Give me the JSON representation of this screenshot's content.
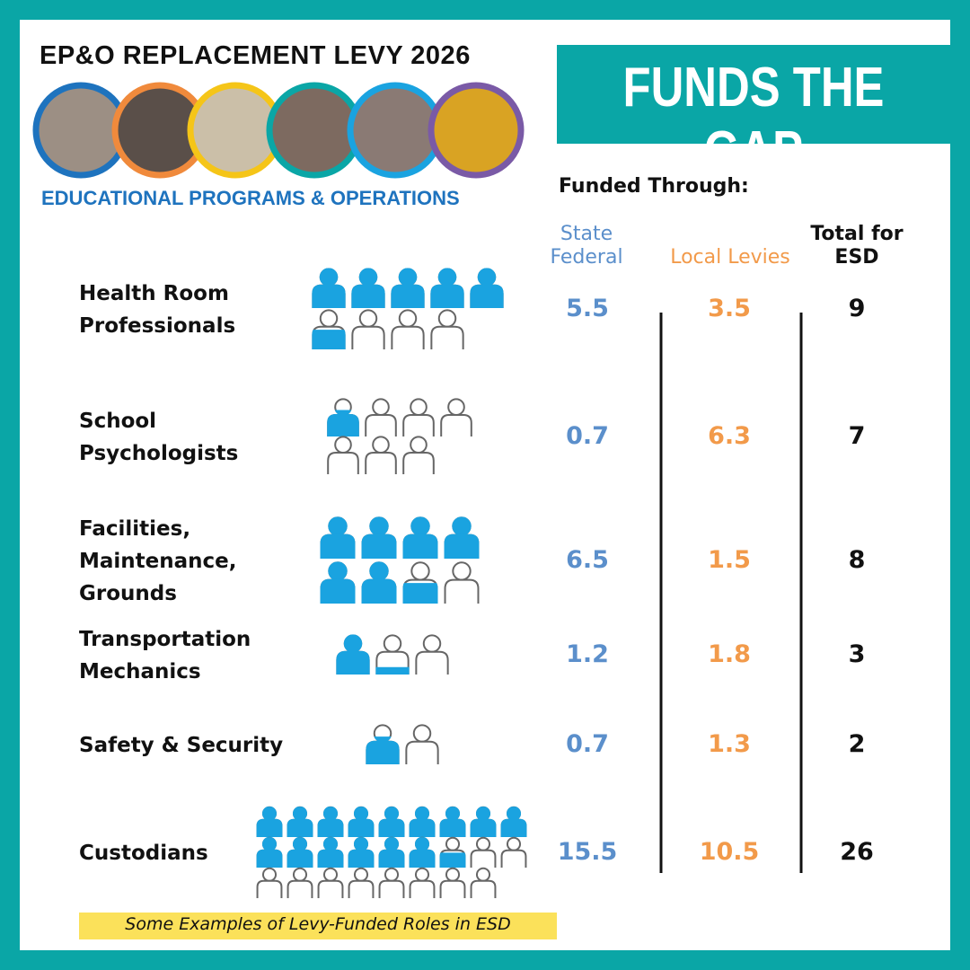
{
  "header": {
    "title": "EP&O REPLACEMENT LEVY 2026",
    "subtitle": "EDUCATIONAL PROGRAMS & OPERATIONS",
    "banner": "FUNDS THE GAP"
  },
  "table": {
    "caption": "Funded Through:",
    "columns": [
      "State Federal",
      "Local Levies",
      "Total for ESD"
    ],
    "rows": [
      {
        "role": "Health Room Professionals",
        "state": 5.5,
        "local": 3.5,
        "total": 9
      },
      {
        "role": "School Psychologists",
        "state": 0.7,
        "local": 6.3,
        "total": 7
      },
      {
        "role": "Facilities, Maintenance, Grounds",
        "state": 6.5,
        "local": 1.5,
        "total": 8
      },
      {
        "role": "Transportation Mechanics",
        "state": 1.2,
        "local": 1.8,
        "total": 3
      },
      {
        "role": "Safety & Security",
        "state": 0.7,
        "local": 1.3,
        "total": 2
      },
      {
        "role": "Custodians",
        "state": 15.5,
        "local": 10.5,
        "total": 26
      }
    ]
  },
  "footnote": "Some Examples of Levy-Funded Roles in ESD"
}
